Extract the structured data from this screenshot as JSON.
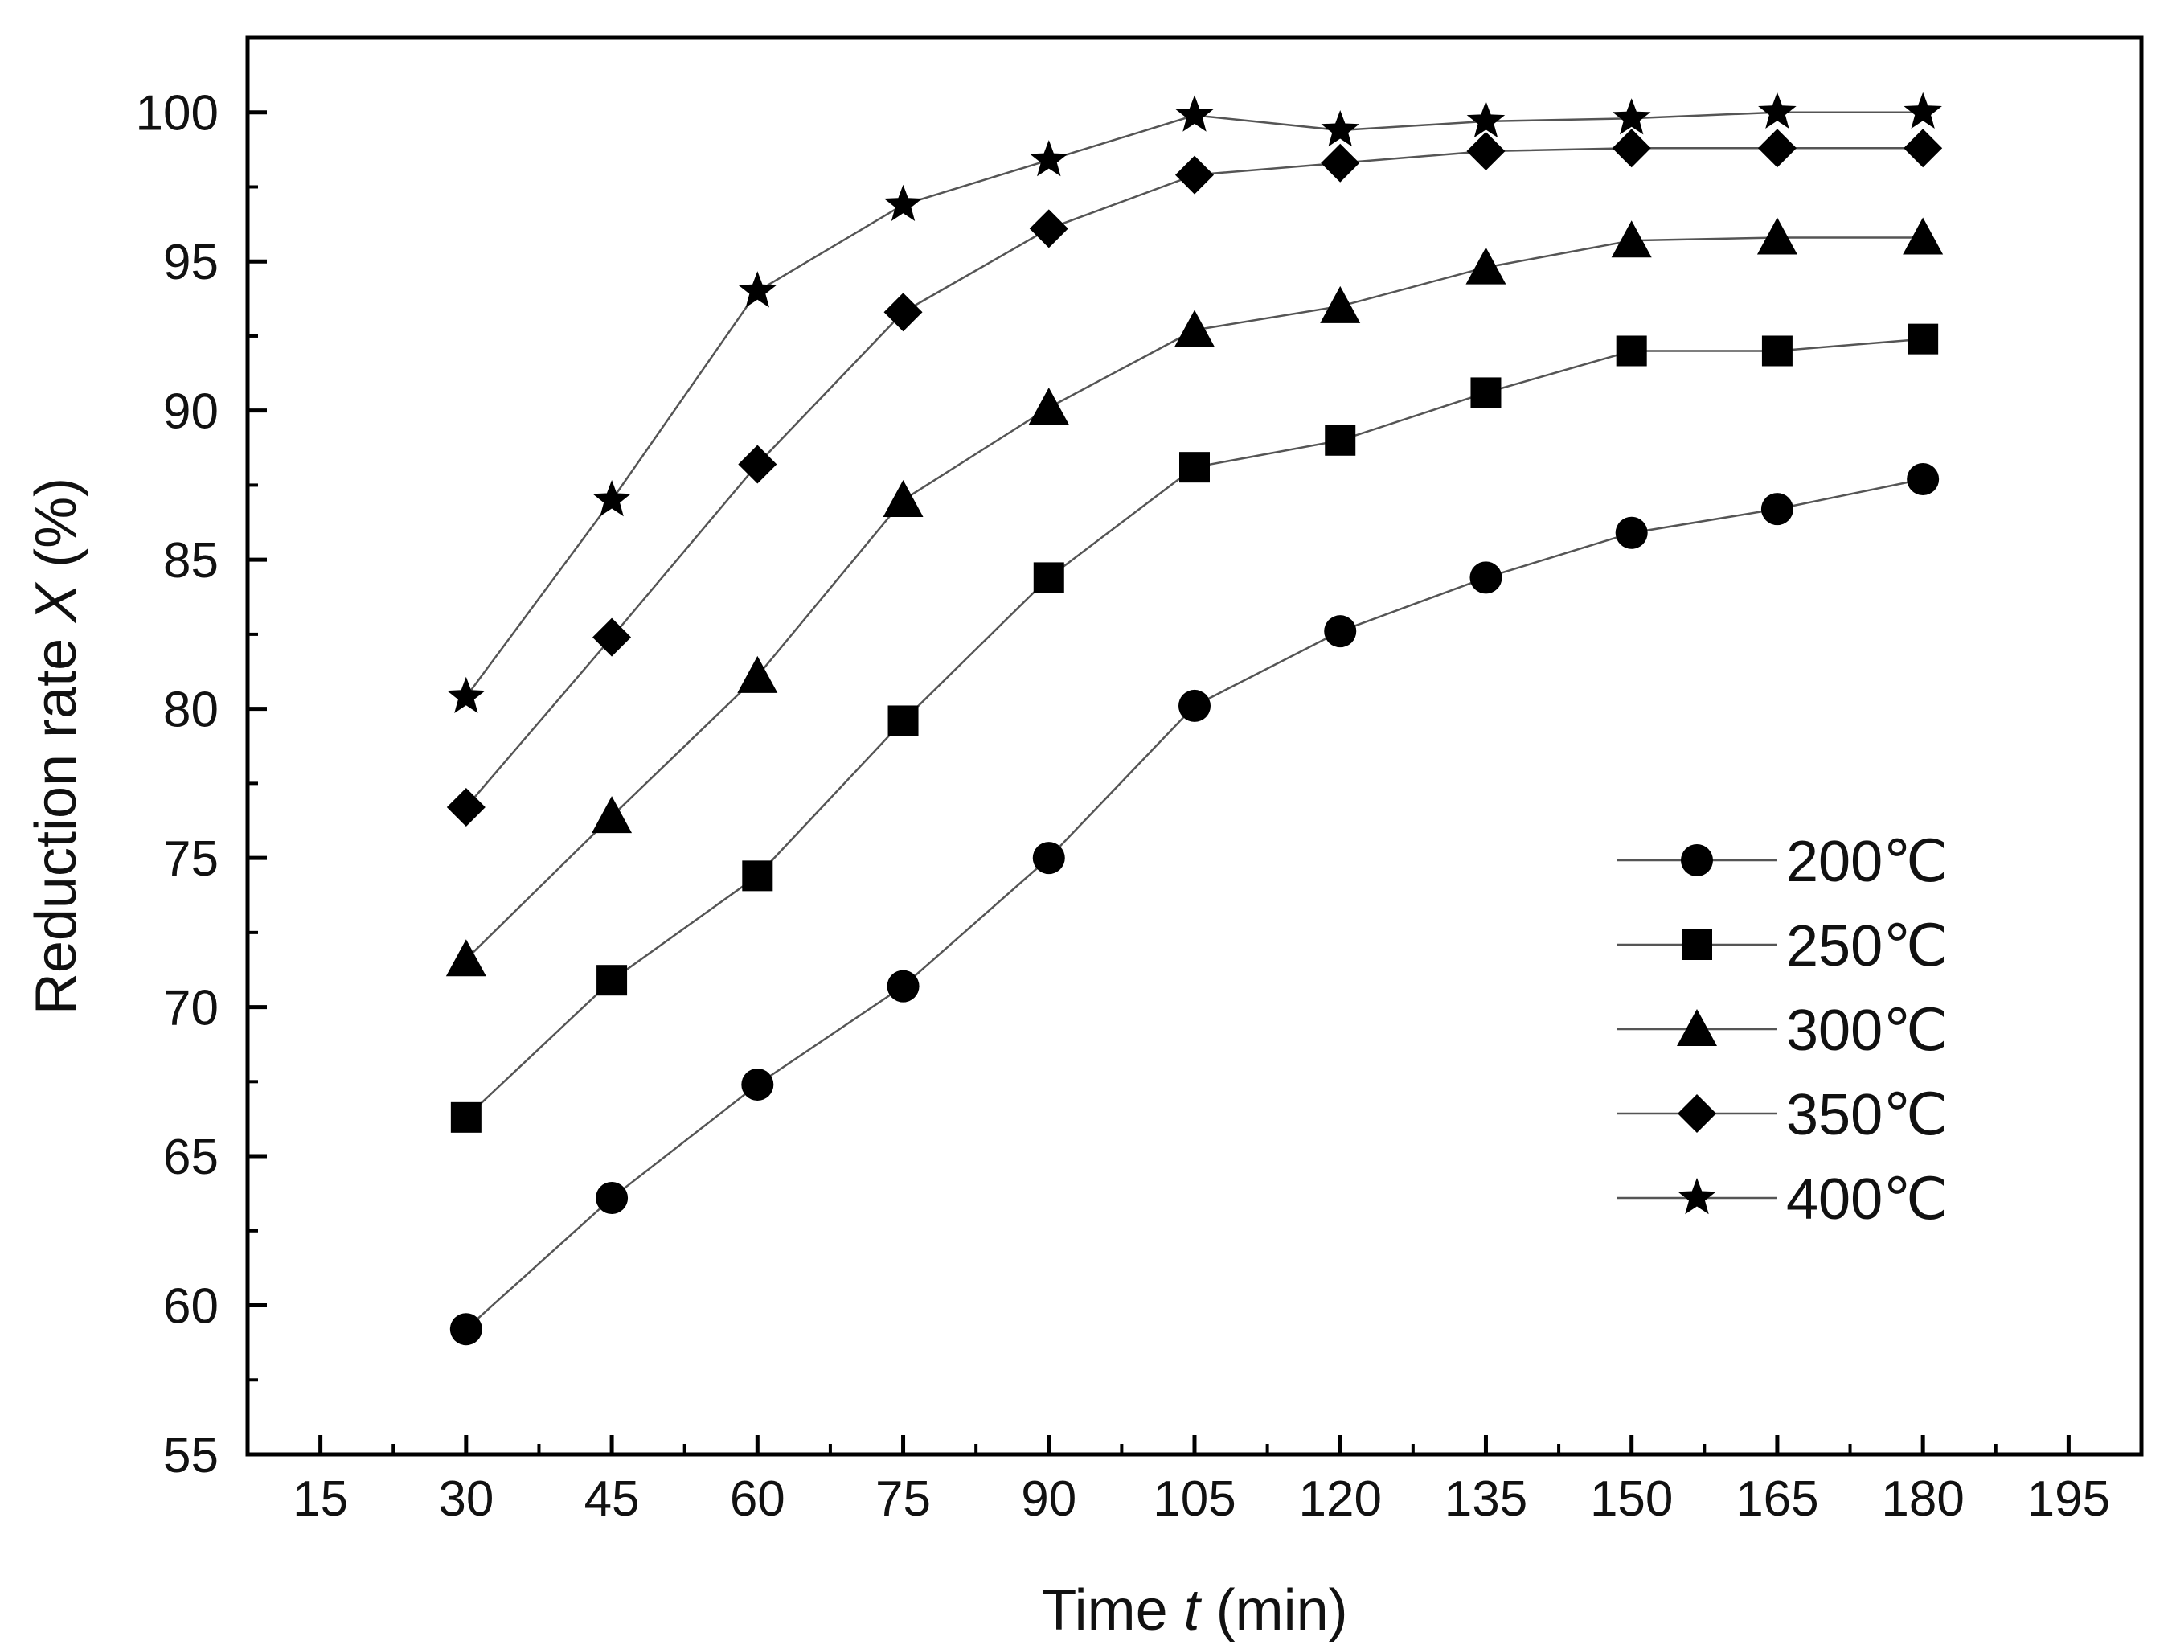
{
  "chart_data": {
    "type": "line",
    "title": "",
    "xlabel_prefix": "Time ",
    "xlabel_var": "t",
    "xlabel_suffix": " (min)",
    "ylabel_prefix": "Reduction rate ",
    "ylabel_var": "X",
    "ylabel_suffix": " (%)",
    "xlim": [
      7.5,
      202.5
    ],
    "ylim": [
      55,
      102.5
    ],
    "xticks": [
      15,
      30,
      45,
      60,
      75,
      90,
      105,
      120,
      135,
      150,
      165,
      180,
      195
    ],
    "yticks": [
      55,
      60,
      65,
      70,
      75,
      80,
      85,
      90,
      95,
      100
    ],
    "grid": false,
    "legend_position": "lower-right",
    "x": [
      30,
      45,
      60,
      75,
      90,
      105,
      120,
      135,
      150,
      165,
      180
    ],
    "series": [
      {
        "name": "200℃",
        "marker": "circle",
        "values": [
          59.2,
          63.6,
          67.4,
          70.7,
          75.0,
          80.1,
          82.6,
          84.4,
          85.9,
          86.7,
          87.7
        ]
      },
      {
        "name": "250℃",
        "marker": "square",
        "values": [
          66.3,
          70.9,
          74.4,
          79.6,
          84.4,
          88.1,
          89.0,
          90.6,
          92.0,
          92.0,
          92.4
        ]
      },
      {
        "name": "300℃",
        "marker": "triangle",
        "values": [
          71.6,
          76.4,
          81.1,
          87.0,
          90.1,
          92.7,
          93.5,
          94.8,
          95.7,
          95.8,
          95.8
        ]
      },
      {
        "name": "350℃",
        "marker": "diamond",
        "values": [
          76.7,
          82.4,
          88.2,
          93.3,
          96.1,
          97.9,
          98.3,
          98.7,
          98.8,
          98.8,
          98.8
        ]
      },
      {
        "name": "400℃",
        "marker": "star",
        "values": [
          80.4,
          87.0,
          94.0,
          96.9,
          98.4,
          99.9,
          99.4,
          99.7,
          99.8,
          100.0,
          100.0
        ]
      }
    ]
  }
}
